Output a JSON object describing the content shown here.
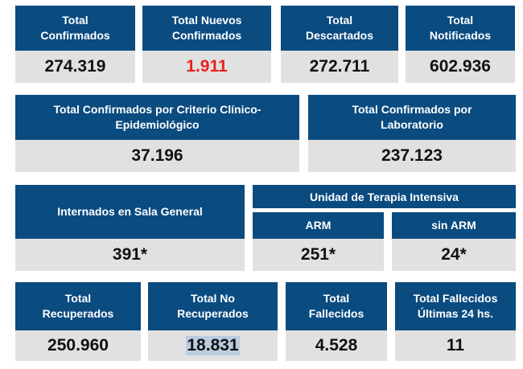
{
  "row1": [
    {
      "label": "Total\nConfirmados",
      "value": "274.319"
    },
    {
      "label": "Total Nuevos\nConfirmados",
      "value": "1.911"
    },
    {
      "label": "Total\nDescartados",
      "value": "272.711"
    },
    {
      "label": "Total\nNotificados",
      "value": "602.936"
    }
  ],
  "row2": [
    {
      "label": "Total Confirmados por Criterio Clínico-\nEpidemiológico",
      "value": "37.196"
    },
    {
      "label": "Total Confirmados por\nLaboratorio",
      "value": "237.123"
    }
  ],
  "row3": {
    "sala_general": {
      "label": "Internados en Sala General",
      "value": "391*"
    },
    "uti_title": "Unidad de Terapia Intensiva",
    "arm": {
      "label": "ARM",
      "value": "251*"
    },
    "sin_arm": {
      "label": "sin ARM",
      "value": "24*"
    }
  },
  "row4": [
    {
      "label": "Total\nRecuperados",
      "value": "250.960"
    },
    {
      "label": "Total No\nRecuperados",
      "value": "18.831"
    },
    {
      "label": "Total\nFallecidos",
      "value": "4.528"
    },
    {
      "label": "Total Fallecidos\nÚltimas 24 hs.",
      "value": "11"
    }
  ],
  "colors": {
    "header": "#0a4b80",
    "value_bg": "#e1e1e1",
    "new_value": "#e8211d"
  }
}
